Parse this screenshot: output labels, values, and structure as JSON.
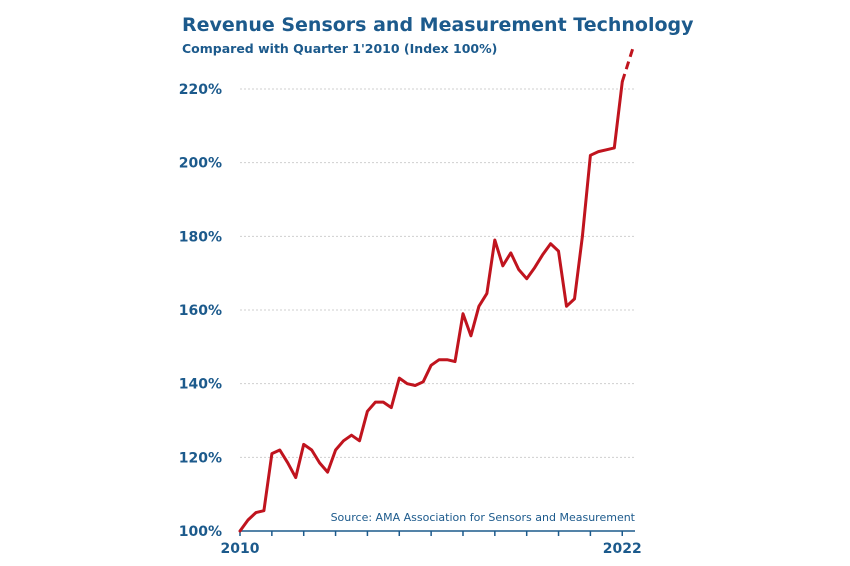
{
  "chart_data": {
    "type": "line",
    "title": "Revenue Sensors and Measurement Technology",
    "subtitle": "Compared with Quarter 1'2010 (Index 100%)",
    "source": "Source: AMA Association  for Sensors and Measurement",
    "x_tick_labels": [
      "2010",
      "2022"
    ],
    "y_tick_labels": [
      "100%",
      "120%",
      "140%",
      "160%",
      "180%",
      "200%",
      "220%"
    ],
    "y_ticks": [
      100,
      120,
      140,
      160,
      180,
      200,
      220
    ],
    "ylim": [
      100,
      230
    ],
    "grid": true,
    "line_color": "#c0141e",
    "series": [
      {
        "x": [
          2010.0,
          2010.25,
          2010.5,
          2010.75,
          2011.0,
          2011.25,
          2011.5,
          2011.75,
          2012.0,
          2012.25,
          2012.5,
          2012.75,
          2013.0,
          2013.25,
          2013.5,
          2013.75,
          2014.0,
          2014.25,
          2014.5,
          2014.75,
          2015.0,
          2015.25,
          2015.5,
          2015.75,
          2016.0,
          2016.25,
          2016.5,
          2016.75,
          2017.0,
          2017.25,
          2017.5,
          2017.75,
          2018.0,
          2018.25,
          2018.5,
          2018.75,
          2019.0,
          2019.25,
          2019.5,
          2019.75,
          2020.0,
          2020.25,
          2020.5,
          2020.75,
          2021.0,
          2021.25,
          2021.5,
          2021.75,
          2022.0
        ],
        "values": [
          100.0,
          103.0,
          105.0,
          105.5,
          121.0,
          122.0,
          118.5,
          114.5,
          123.5,
          122.0,
          118.5,
          116.0,
          122.0,
          124.5,
          126.0,
          124.5,
          132.5,
          135.0,
          135.0,
          133.5,
          141.5,
          140.0,
          139.5,
          140.5,
          145.0,
          146.5,
          146.5,
          146.0,
          159.0,
          153.0,
          161.0,
          164.5,
          179.0,
          172.0,
          175.5,
          171.0,
          168.5,
          171.5,
          175.0,
          178.0,
          176.0,
          161.0,
          163.0,
          180.0,
          202.0,
          203.0,
          203.5,
          204.0,
          222.0
        ]
      }
    ],
    "projection": {
      "x": [
        2022.0,
        2022.33
      ],
      "values": [
        222.0,
        231.0
      ],
      "style": "dashed"
    }
  }
}
